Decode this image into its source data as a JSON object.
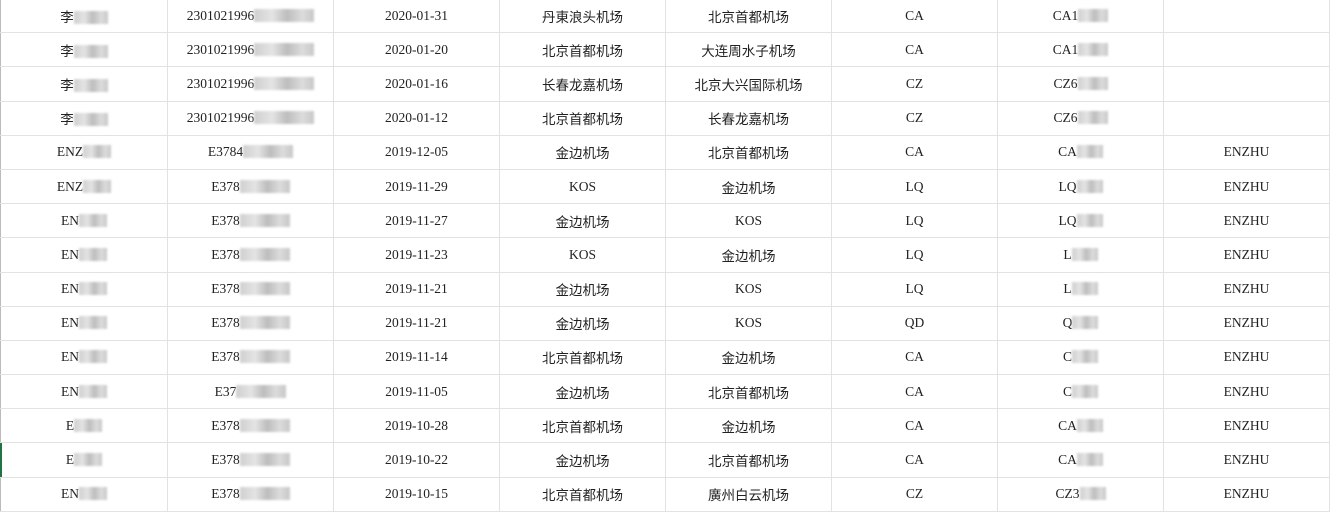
{
  "rows": [
    [
      "李",
      "2301021996",
      "2020-01-31",
      "丹東浪头机场",
      "北京首都机场",
      "CA",
      "CA1",
      ""
    ],
    [
      "李",
      "2301021996",
      "2020-01-20",
      "北京首都机场",
      "大连周水子机场",
      "CA",
      "CA1",
      ""
    ],
    [
      "李",
      "2301021996",
      "2020-01-16",
      "长春龙嘉机场",
      "北京大兴国际机场",
      "CZ",
      "CZ6",
      ""
    ],
    [
      "李",
      "2301021996",
      "2020-01-12",
      "北京首都机场",
      "长春龙嘉机场",
      "CZ",
      "CZ6",
      ""
    ],
    [
      "ENZ",
      "E3784",
      "2019-12-05",
      "金边机场",
      "北京首都机场",
      "CA",
      "CA",
      "ENZHU"
    ],
    [
      "ENZ",
      "E378",
      "2019-11-29",
      "KOS",
      "金边机场",
      "LQ",
      "LQ",
      "ENZHU"
    ],
    [
      "EN",
      "E378",
      "2019-11-27",
      "金边机场",
      "KOS",
      "LQ",
      "LQ",
      "ENZHU"
    ],
    [
      "EN",
      "E378",
      "2019-11-23",
      "KOS",
      "金边机场",
      "LQ",
      "L",
      "ENZHU"
    ],
    [
      "EN",
      "E378",
      "2019-11-21",
      "金边机场",
      "KOS",
      "LQ",
      "L",
      "ENZHU"
    ],
    [
      "EN",
      "E378",
      "2019-11-21",
      "金边机场",
      "KOS",
      "QD",
      "Q",
      "ENZHU"
    ],
    [
      "EN",
      "E378",
      "2019-11-14",
      "北京首都机场",
      "金边机场",
      "CA",
      "C",
      "ENZHU"
    ],
    [
      "EN",
      "E37",
      "2019-11-05",
      "金边机场",
      "北京首都机场",
      "CA",
      "C",
      "ENZHU"
    ],
    [
      "E",
      "E378",
      "2019-10-28",
      "北京首都机场",
      "金边机场",
      "CA",
      "CA",
      "ENZHU"
    ],
    [
      "E",
      "E378",
      "2019-10-22",
      "金边机场",
      "北京首都机场",
      "CA",
      "CA",
      "ENZHU"
    ],
    [
      "EN",
      "E378",
      "2019-10-15",
      "北京首都机场",
      "廣州白云机场",
      "CZ",
      "CZ3",
      "ENZHU"
    ]
  ],
  "blurred_columns": [
    0,
    1,
    6
  ],
  "colors": {
    "grid": "#e2e2e2",
    "active_row_marker": "#217346"
  }
}
